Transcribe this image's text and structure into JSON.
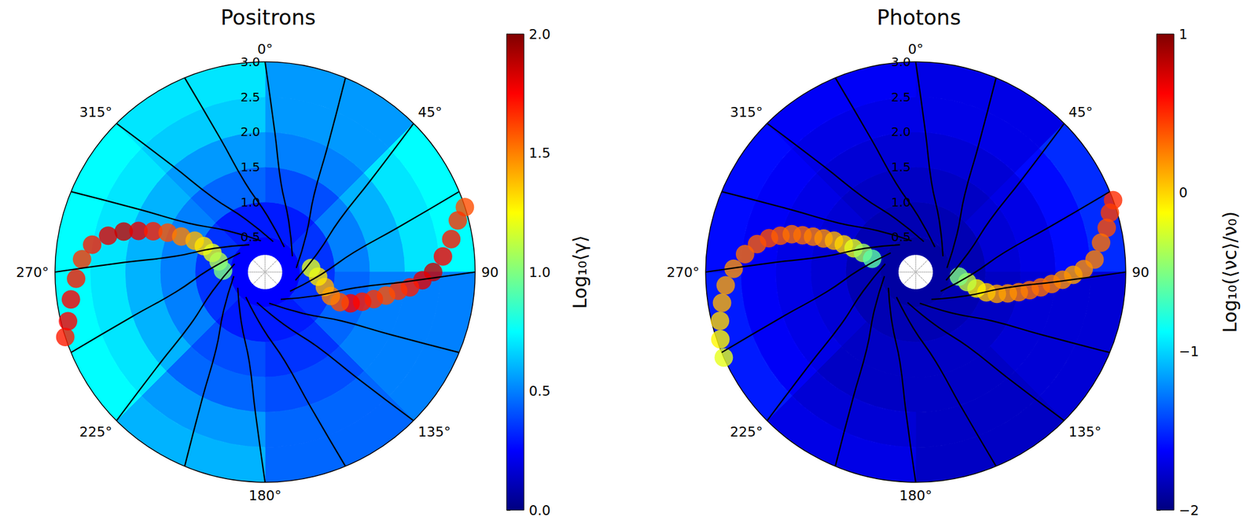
{
  "chart_data": [
    {
      "type": "polar_heatmap",
      "title": "Positrons",
      "angle_lim": [
        0,
        360
      ],
      "angle_ticks": [
        {
          "value": 0,
          "label": "0°"
        },
        {
          "value": 45,
          "label": "45°"
        },
        {
          "value": 90,
          "label": "90"
        },
        {
          "value": 135,
          "label": "135°"
        },
        {
          "value": 180,
          "label": "180°"
        },
        {
          "value": 225,
          "label": "225°"
        },
        {
          "value": 270,
          "label": "270°"
        },
        {
          "value": 315,
          "label": "315°"
        }
      ],
      "rlim": [
        0,
        3
      ],
      "rticks": [
        0.5,
        {
          "value": 1,
          "label": "1.0"
        },
        1.5,
        {
          "value": 2,
          "label": "2.0"
        },
        2.5,
        {
          "value": 3,
          "label": "3.0"
        }
      ],
      "colorbar": {
        "label": "Log₁₀⟨γ⟩",
        "range": [
          0,
          2
        ],
        "ticks": [
          {
            "value": 0,
            "label": "0.0"
          },
          0.5,
          {
            "value": 1,
            "label": "1.0"
          },
          1.5,
          {
            "value": 2,
            "label": "2.0"
          }
        ]
      },
      "cells": {
        "r_edges": [
          0.25,
          0.5,
          1,
          1.5,
          2,
          2.5,
          3
        ],
        "theta_edges": [
          0,
          45,
          90,
          135,
          180,
          225,
          270,
          315,
          360
        ],
        "values": [
          [
            0.25,
            0.25,
            0.25,
            0.25,
            0.25,
            0.25,
            0.25,
            0.25
          ],
          [
            0.3,
            0.35,
            0.35,
            0.3,
            0.3,
            0.35,
            0.35,
            0.3
          ],
          [
            0.4,
            0.5,
            0.45,
            0.35,
            0.4,
            0.5,
            0.5,
            0.45
          ],
          [
            0.5,
            0.6,
            0.5,
            0.4,
            0.45,
            0.6,
            0.6,
            0.55
          ],
          [
            0.55,
            0.7,
            0.5,
            0.45,
            0.55,
            0.7,
            0.7,
            0.65
          ],
          [
            0.55,
            0.75,
            0.5,
            0.45,
            0.6,
            0.75,
            0.75,
            0.7
          ]
        ]
      },
      "current_sheet": [
        {
          "r": [
            3.0,
            2.85,
            2.7,
            2.55,
            2.4,
            2.25,
            2.08,
            1.92,
            1.76,
            1.6,
            1.45,
            1.3,
            1.15,
            1.0,
            0.88,
            0.76,
            0.66
          ],
          "theta": [
            72,
            75,
            80,
            85,
            90,
            93,
            96,
            98,
            101,
            104,
            107,
            110,
            112,
            110,
            104,
            95,
            85
          ],
          "values": [
            1.6,
            1.65,
            1.7,
            1.75,
            1.85,
            1.8,
            1.7,
            1.65,
            1.6,
            1.65,
            1.7,
            1.75,
            1.6,
            1.5,
            1.4,
            1.3,
            1.2
          ]
        },
        {
          "r": [
            3.0,
            2.9,
            2.8,
            2.7,
            2.62,
            2.5,
            2.3,
            2.1,
            1.9,
            1.7,
            1.5,
            1.3,
            1.1,
            0.95,
            0.8,
            0.68,
            0.6
          ],
          "theta": [
            252,
            256,
            262,
            268,
            274,
            279,
            283,
            286,
            288,
            290,
            292,
            293,
            294,
            293,
            290,
            283,
            272
          ],
          "values": [
            1.7,
            1.75,
            1.75,
            1.7,
            1.65,
            1.7,
            1.8,
            1.85,
            1.8,
            1.7,
            1.6,
            1.5,
            1.4,
            1.3,
            1.2,
            1.1,
            1.0
          ]
        }
      ],
      "field_lines": [
        [
          [
            3,
            0
          ],
          [
            2,
            4
          ],
          [
            1.3,
            10
          ],
          [
            0.8,
            25
          ],
          [
            0.45,
            60
          ]
        ],
        [
          [
            3,
            22.5
          ],
          [
            2,
            26.5
          ],
          [
            1.3,
            32.5
          ],
          [
            0.8,
            47.5
          ],
          [
            0.45,
            82.5
          ]
        ],
        [
          [
            3,
            45
          ],
          [
            2,
            49
          ],
          [
            1.3,
            55
          ],
          [
            0.8,
            70
          ],
          [
            0.45,
            105
          ]
        ],
        [
          [
            3,
            67.5
          ],
          [
            2,
            71.5
          ],
          [
            1.3,
            77.5
          ],
          [
            0.8,
            92.5
          ],
          [
            0.45,
            127.5
          ]
        ],
        [
          [
            3,
            90
          ],
          [
            2,
            94
          ],
          [
            1.3,
            100
          ],
          [
            0.8,
            115
          ],
          [
            0.45,
            150
          ]
        ],
        [
          [
            3,
            112.5
          ],
          [
            2,
            116.5
          ],
          [
            1.3,
            122.5
          ],
          [
            0.8,
            137.5
          ],
          [
            0.45,
            172.5
          ]
        ],
        [
          [
            3,
            135
          ],
          [
            2,
            139
          ],
          [
            1.3,
            145
          ],
          [
            0.8,
            160
          ],
          [
            0.45,
            195
          ]
        ],
        [
          [
            3,
            157.5
          ],
          [
            2,
            161.5
          ],
          [
            1.3,
            167.5
          ],
          [
            0.8,
            182.5
          ],
          [
            0.45,
            217.5
          ]
        ],
        [
          [
            3,
            180
          ],
          [
            2,
            184
          ],
          [
            1.3,
            190
          ],
          [
            0.8,
            205
          ],
          [
            0.45,
            240
          ]
        ],
        [
          [
            3,
            202.5
          ],
          [
            2,
            206.5
          ],
          [
            1.3,
            212.5
          ],
          [
            0.8,
            227.5
          ],
          [
            0.45,
            262.5
          ]
        ],
        [
          [
            3,
            225
          ],
          [
            2,
            229
          ],
          [
            1.3,
            235
          ],
          [
            0.8,
            250
          ],
          [
            0.45,
            285
          ]
        ],
        [
          [
            3,
            247.5
          ],
          [
            2,
            251.5
          ],
          [
            1.3,
            257.5
          ],
          [
            0.8,
            272.5
          ],
          [
            0.45,
            307.5
          ]
        ],
        [
          [
            3,
            270
          ],
          [
            2,
            274
          ],
          [
            1.3,
            280
          ],
          [
            0.8,
            295
          ],
          [
            0.45,
            330
          ]
        ],
        [
          [
            3,
            292.5
          ],
          [
            2,
            296.5
          ],
          [
            1.3,
            302.5
          ],
          [
            0.8,
            317.5
          ],
          [
            0.45,
            352.5
          ]
        ],
        [
          [
            3,
            315
          ],
          [
            2,
            319
          ],
          [
            1.3,
            325
          ],
          [
            0.8,
            340
          ],
          [
            0.45,
            15
          ]
        ],
        [
          [
            3,
            337.5
          ],
          [
            2,
            341.5
          ],
          [
            1.3,
            347.5
          ],
          [
            0.8,
            2.5
          ],
          [
            0.45,
            37.5
          ]
        ]
      ]
    },
    {
      "type": "polar_heatmap",
      "title": "Photons",
      "angle_lim": [
        0,
        360
      ],
      "angle_ticks": [
        {
          "value": 0,
          "label": "0°"
        },
        {
          "value": 45,
          "label": "45°"
        },
        {
          "value": 90,
          "label": "90"
        },
        {
          "value": 135,
          "label": "135°"
        },
        {
          "value": 180,
          "label": "180°"
        },
        {
          "value": 225,
          "label": "225°"
        },
        {
          "value": 270,
          "label": "270°"
        },
        {
          "value": 315,
          "label": "315°"
        }
      ],
      "rlim": [
        0,
        3
      ],
      "rticks": [
        0.5,
        {
          "value": 1,
          "label": "1.0"
        },
        1.5,
        {
          "value": 2,
          "label": "2.0"
        },
        2.5,
        {
          "value": 3,
          "label": "3.0"
        }
      ],
      "colorbar": {
        "label": "Log₁₀(⟨νc⟩/ν₀)",
        "range": [
          -2,
          1
        ],
        "ticks": [
          {
            "value": -2,
            "label": "−2"
          },
          {
            "value": -1,
            "label": "−1"
          },
          0,
          1
        ]
      },
      "cells": {
        "r_edges": [
          0.25,
          0.5,
          1,
          1.5,
          2,
          2.5,
          3
        ],
        "theta_edges": [
          0,
          45,
          90,
          135,
          180,
          225,
          270,
          315,
          360
        ],
        "values": [
          [
            -1.9,
            -1.9,
            -1.9,
            -1.9,
            -1.9,
            -1.9,
            -1.9,
            -1.9
          ],
          [
            -1.85,
            -1.85,
            -1.85,
            -1.85,
            -1.85,
            -1.85,
            -1.85,
            -1.85
          ],
          [
            -1.8,
            -1.75,
            -1.8,
            -1.8,
            -1.8,
            -1.75,
            -1.75,
            -1.8
          ],
          [
            -1.75,
            -1.7,
            -1.75,
            -1.8,
            -1.8,
            -1.7,
            -1.7,
            -1.75
          ],
          [
            -1.7,
            -1.6,
            -1.75,
            -1.8,
            -1.75,
            -1.65,
            -1.65,
            -1.7
          ],
          [
            -1.7,
            -1.5,
            -1.75,
            -1.8,
            -1.7,
            -1.55,
            -1.6,
            -1.65
          ]
        ]
      },
      "current_sheet": [
        {
          "r": [
            3.0,
            2.9,
            2.8,
            2.68,
            2.56,
            2.4,
            2.25,
            2.1,
            1.95,
            1.8,
            1.65,
            1.5,
            1.35,
            1.2,
            1.05,
            0.9,
            0.75,
            0.62
          ],
          "theta": [
            70,
            73,
            77,
            81,
            86,
            89,
            91,
            93,
            95,
            97,
            99,
            101,
            103,
            105,
            106,
            105,
            101,
            96
          ],
          "values": [
            0.5,
            0.45,
            0.4,
            0.3,
            0.25,
            0.2,
            0.15,
            0.2,
            0.25,
            0.3,
            0.3,
            0.25,
            0.2,
            0.15,
            0.05,
            -0.1,
            -0.3,
            -0.5
          ]
        },
        {
          "r": [
            3.0,
            2.95,
            2.88,
            2.8,
            2.72,
            2.6,
            2.45,
            2.3,
            2.15,
            2.0,
            1.85,
            1.7,
            1.55,
            1.4,
            1.25,
            1.1,
            0.95,
            0.8,
            0.65
          ],
          "theta": [
            246,
            251,
            256,
            261,
            266,
            271,
            276,
            280,
            283,
            285,
            287,
            288,
            289,
            290,
            291,
            291,
            291,
            290,
            287
          ],
          "values": [
            -0.2,
            -0.1,
            0.0,
            0.1,
            0.15,
            0.2,
            0.3,
            0.35,
            0.4,
            0.35,
            0.3,
            0.3,
            0.25,
            0.2,
            0.1,
            0.0,
            -0.2,
            -0.4,
            -0.6
          ]
        }
      ],
      "field_lines": [
        [
          [
            3,
            0
          ],
          [
            2,
            4
          ],
          [
            1.3,
            10
          ],
          [
            0.8,
            25
          ],
          [
            0.45,
            60
          ]
        ],
        [
          [
            3,
            22.5
          ],
          [
            2,
            26.5
          ],
          [
            1.3,
            32.5
          ],
          [
            0.8,
            47.5
          ],
          [
            0.45,
            82.5
          ]
        ],
        [
          [
            3,
            45
          ],
          [
            2,
            49
          ],
          [
            1.3,
            55
          ],
          [
            0.8,
            70
          ],
          [
            0.45,
            105
          ]
        ],
        [
          [
            3,
            67.5
          ],
          [
            2,
            71.5
          ],
          [
            1.3,
            77.5
          ],
          [
            0.8,
            92.5
          ],
          [
            0.45,
            127.5
          ]
        ],
        [
          [
            3,
            90
          ],
          [
            2,
            94
          ],
          [
            1.3,
            100
          ],
          [
            0.8,
            115
          ],
          [
            0.45,
            150
          ]
        ],
        [
          [
            3,
            112.5
          ],
          [
            2,
            116.5
          ],
          [
            1.3,
            122.5
          ],
          [
            0.8,
            137.5
          ],
          [
            0.45,
            172.5
          ]
        ],
        [
          [
            3,
            135
          ],
          [
            2,
            139
          ],
          [
            1.3,
            145
          ],
          [
            0.8,
            160
          ],
          [
            0.45,
            195
          ]
        ],
        [
          [
            3,
            157.5
          ],
          [
            2,
            161.5
          ],
          [
            1.3,
            167.5
          ],
          [
            0.8,
            182.5
          ],
          [
            0.45,
            217.5
          ]
        ],
        [
          [
            3,
            180
          ],
          [
            2,
            184
          ],
          [
            1.3,
            190
          ],
          [
            0.8,
            205
          ],
          [
            0.45,
            240
          ]
        ],
        [
          [
            3,
            202.5
          ],
          [
            2,
            206.5
          ],
          [
            1.3,
            212.5
          ],
          [
            0.8,
            227.5
          ],
          [
            0.45,
            262.5
          ]
        ],
        [
          [
            3,
            225
          ],
          [
            2,
            229
          ],
          [
            1.3,
            235
          ],
          [
            0.8,
            250
          ],
          [
            0.45,
            285
          ]
        ],
        [
          [
            3,
            247.5
          ],
          [
            2,
            251.5
          ],
          [
            1.3,
            257.5
          ],
          [
            0.8,
            272.5
          ],
          [
            0.45,
            307.5
          ]
        ],
        [
          [
            3,
            270
          ],
          [
            2,
            274
          ],
          [
            1.3,
            280
          ],
          [
            0.8,
            295
          ],
          [
            0.45,
            330
          ]
        ],
        [
          [
            3,
            292.5
          ],
          [
            2,
            296.5
          ],
          [
            1.3,
            302.5
          ],
          [
            0.8,
            317.5
          ],
          [
            0.45,
            352.5
          ]
        ],
        [
          [
            3,
            315
          ],
          [
            2,
            319
          ],
          [
            1.3,
            325
          ],
          [
            0.8,
            340
          ],
          [
            0.45,
            15
          ]
        ],
        [
          [
            3,
            337.5
          ],
          [
            2,
            341.5
          ],
          [
            1.3,
            347.5
          ],
          [
            0.8,
            2.5
          ],
          [
            0.45,
            37.5
          ]
        ]
      ]
    }
  ]
}
